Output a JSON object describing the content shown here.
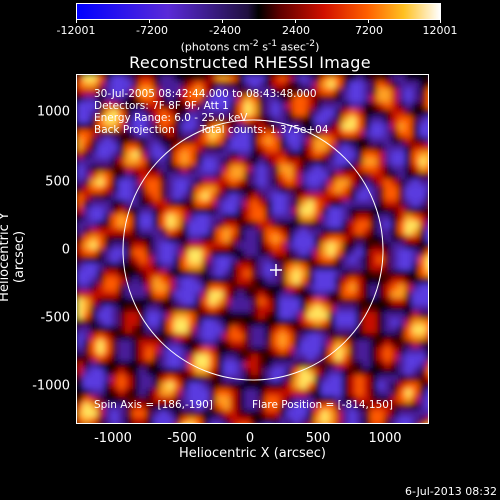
{
  "colorbar": {
    "ticks": [
      "-12001",
      "-7200",
      "-2400",
      "2400",
      "7200",
      "12001"
    ],
    "units_prefix": "(photons cm",
    "units_suffix": ")",
    "units_html": "(photons cm<sup>-2</sup> s<sup>-1</sup> asec<sup>-2</sup>)"
  },
  "title": "Reconstructed RHESSI Image",
  "info": {
    "line1": "30-Jul-2005 08:42:44.000 to 08:43:48.000",
    "line2": "Detectors: 7F 8F 9F, Att 1",
    "line3": "Energy Range: 6.0 - 25.0 keV",
    "line4_left": "Back Projection",
    "line4_right": "Total counts: 1.375e+04",
    "spin_axis": "Spin Axis = [186,-190]",
    "flare_position": "Flare Position = [-814,150]"
  },
  "axes": {
    "xlabel": "Heliocentric X (arcsec)",
    "ylabel": "Heliocentric Y (arcsec)",
    "xticks": [
      "-1000",
      "-500",
      "0",
      "500",
      "1000"
    ],
    "yticks": [
      "1000",
      "500",
      "0",
      "-500",
      "-1000"
    ]
  },
  "datestamp": "6-Jul-2013 08:32",
  "colors": {
    "negative": "#3010e0",
    "zero": "#000000",
    "positive_low": "#c00000",
    "positive_mid": "#ff8000",
    "positive_high": "#ffffff"
  }
}
